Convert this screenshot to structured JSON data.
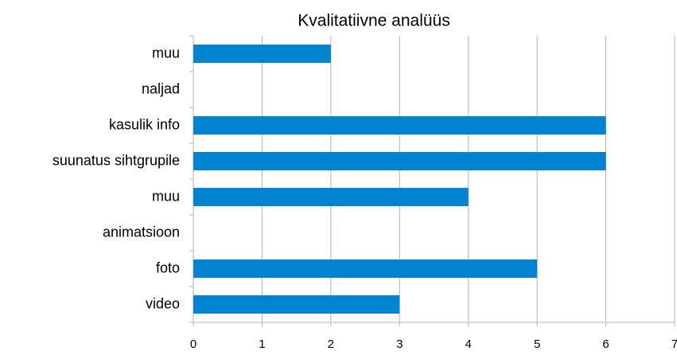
{
  "chart_data": {
    "type": "bar",
    "orientation": "horizontal",
    "title": "Kvalitatiivne analüüs",
    "categories": [
      "muu",
      "naljad",
      "kasulik info",
      "suunatus sihtgrupile",
      "muu",
      "animatsioon",
      "foto",
      "video"
    ],
    "values": [
      2,
      0,
      6,
      6,
      4,
      0,
      5,
      3
    ],
    "color": "#0083d0",
    "xlim": [
      0,
      7
    ],
    "xticks": [
      0,
      1,
      2,
      3,
      4,
      5,
      6,
      7
    ],
    "grid": true
  }
}
